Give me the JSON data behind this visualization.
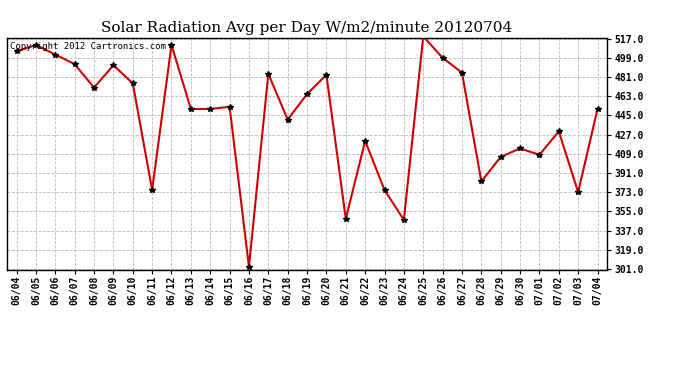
{
  "title": "Solar Radiation Avg per Day W/m2/minute 20120704",
  "copyright_text": "Copyright 2012 Cartronics.com",
  "dates": [
    "06/04",
    "06/05",
    "06/06",
    "06/07",
    "06/08",
    "06/09",
    "06/10",
    "06/11",
    "06/12",
    "06/13",
    "06/14",
    "06/15",
    "06/16",
    "06/17",
    "06/18",
    "06/19",
    "06/20",
    "06/21",
    "06/22",
    "06/23",
    "06/24",
    "06/25",
    "06/26",
    "06/27",
    "06/28",
    "06/29",
    "06/30",
    "07/01",
    "07/02",
    "07/03",
    "07/04"
  ],
  "values": [
    505,
    511,
    502,
    493,
    471,
    492,
    475,
    375,
    511,
    451,
    451,
    453,
    303,
    484,
    441,
    465,
    483,
    348,
    421,
    375,
    347,
    519,
    499,
    485,
    383,
    406,
    414,
    408,
    430,
    373,
    451
  ],
  "line_color": "#cc0000",
  "marker_color": "#000000",
  "bg_color": "#ffffff",
  "grid_color": "#bbbbbb",
  "ylim_min": 301.0,
  "ylim_max": 517.0,
  "ytick_step": 18.0,
  "title_fontsize": 11,
  "tick_fontsize": 7,
  "copyright_fontsize": 6.5
}
